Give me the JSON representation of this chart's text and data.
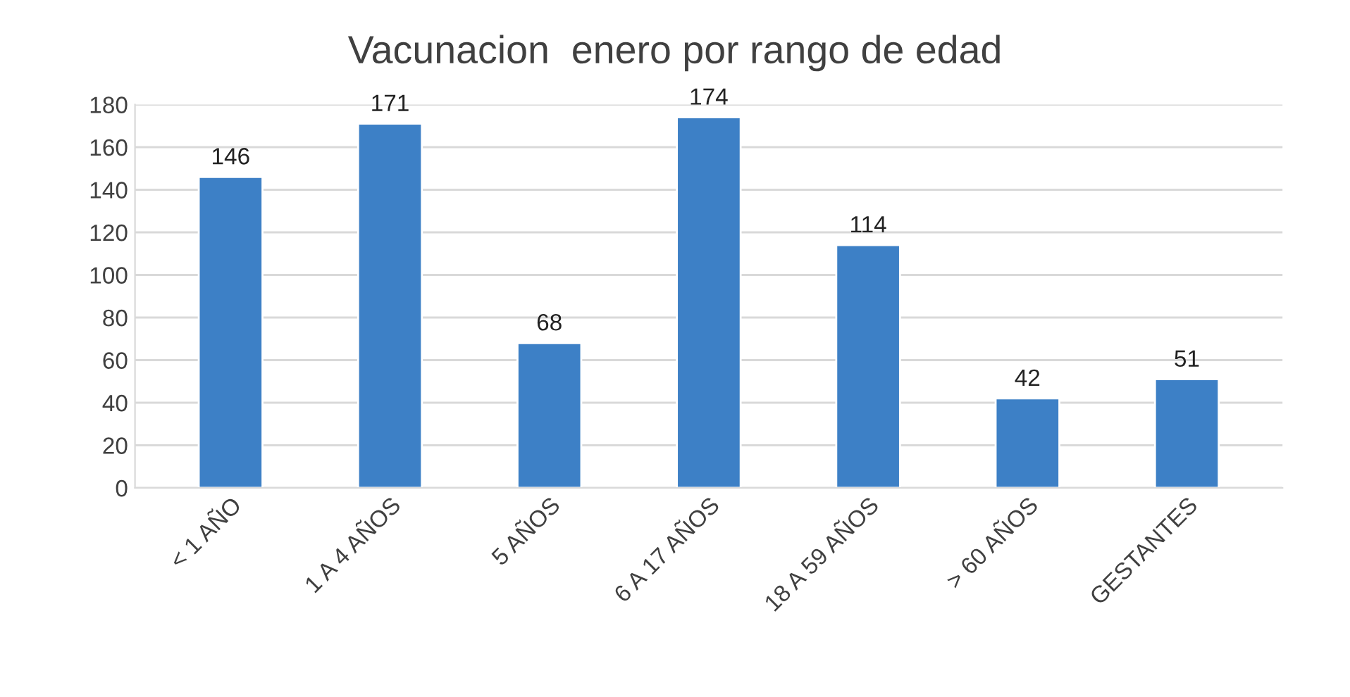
{
  "chart_data": {
    "type": "bar",
    "title": "Vacunacion  enero por rango de edad",
    "categories": [
      "< 1 AÑO",
      "1 A 4 AÑOS",
      "5 AÑOS",
      "6 A 17 AÑOS",
      "18 A 59 AÑOS",
      "> 60 AÑOS",
      "GESTANTES"
    ],
    "values": [
      146,
      171,
      68,
      174,
      114,
      42,
      51
    ],
    "color": "#3d80c6",
    "ylim": [
      0,
      180
    ],
    "yticks": [
      0,
      20,
      40,
      60,
      80,
      100,
      120,
      140,
      160,
      180
    ],
    "grid": "y",
    "data_labels": true,
    "legend": false
  }
}
